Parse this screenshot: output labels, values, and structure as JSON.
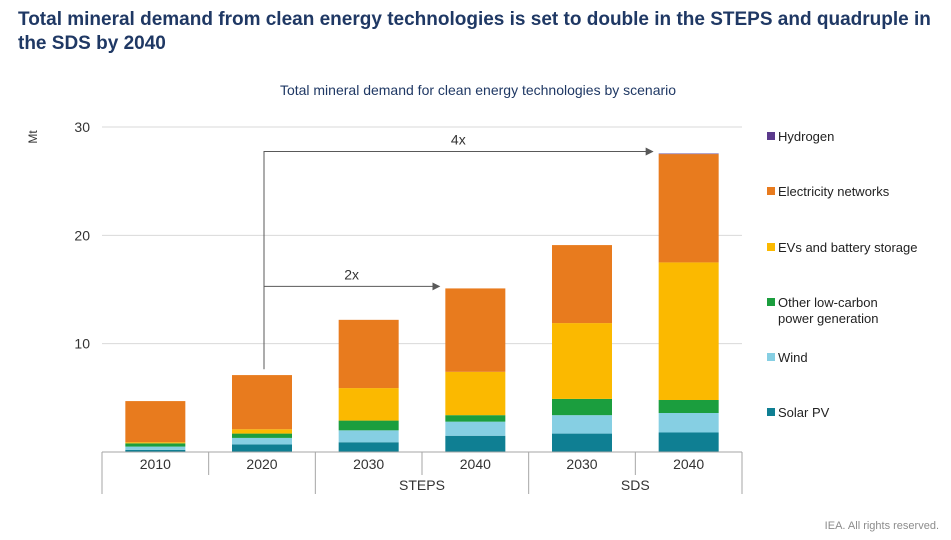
{
  "headline": "Total mineral demand from clean energy technologies is set to double in the STEPS and quadruple in the SDS by 2040",
  "source": "IEA. All rights reserved.",
  "chart_data": {
    "type": "bar",
    "stacked": true,
    "title": "Total mineral demand for clean energy technologies by scenario",
    "ylabel": "Mt",
    "ylim": [
      0,
      30
    ],
    "yticks": [
      10,
      20,
      30
    ],
    "categories": [
      "2010",
      "2020",
      "2030",
      "2040",
      "2030",
      "2040"
    ],
    "groups": [
      {
        "label": "STEPS",
        "categories": [
          2,
          3
        ]
      },
      {
        "label": "SDS",
        "categories": [
          4,
          5
        ]
      }
    ],
    "series": [
      {
        "name": "Solar PV",
        "color": "#0f7f93",
        "values": [
          0.2,
          0.7,
          0.9,
          1.5,
          1.7,
          1.8
        ]
      },
      {
        "name": "Wind",
        "color": "#86cfe3",
        "values": [
          0.3,
          0.6,
          1.1,
          1.3,
          1.7,
          1.8
        ]
      },
      {
        "name": "Other low-carbon power generation",
        "color": "#1b9e3e",
        "values": [
          0.3,
          0.4,
          0.9,
          0.6,
          1.5,
          1.2
        ]
      },
      {
        "name": "EVs and battery storage",
        "color": "#fbb900",
        "values": [
          0.1,
          0.4,
          3.0,
          4.0,
          7.0,
          12.7
        ]
      },
      {
        "name": "Electricity networks",
        "color": "#e87b1e",
        "values": [
          3.8,
          5.0,
          6.3,
          7.7,
          7.2,
          10.0
        ]
      },
      {
        "name": "Hydrogen",
        "color": "#5b3a8c",
        "values": [
          0,
          0,
          0,
          0,
          0,
          0.05
        ]
      }
    ],
    "legend_order": [
      "Hydrogen",
      "Electricity networks",
      "EVs and battery storage",
      "Other low-carbon power generation",
      "Wind",
      "Solar PV"
    ],
    "legend_lines": {
      "Other low-carbon power generation": [
        "Other low-carbon",
        "power generation"
      ]
    },
    "annotations": [
      {
        "label": "2x",
        "from_category": 1,
        "to_category": 3
      },
      {
        "label": "4x",
        "from_category": 1,
        "to_category": 5
      }
    ]
  }
}
